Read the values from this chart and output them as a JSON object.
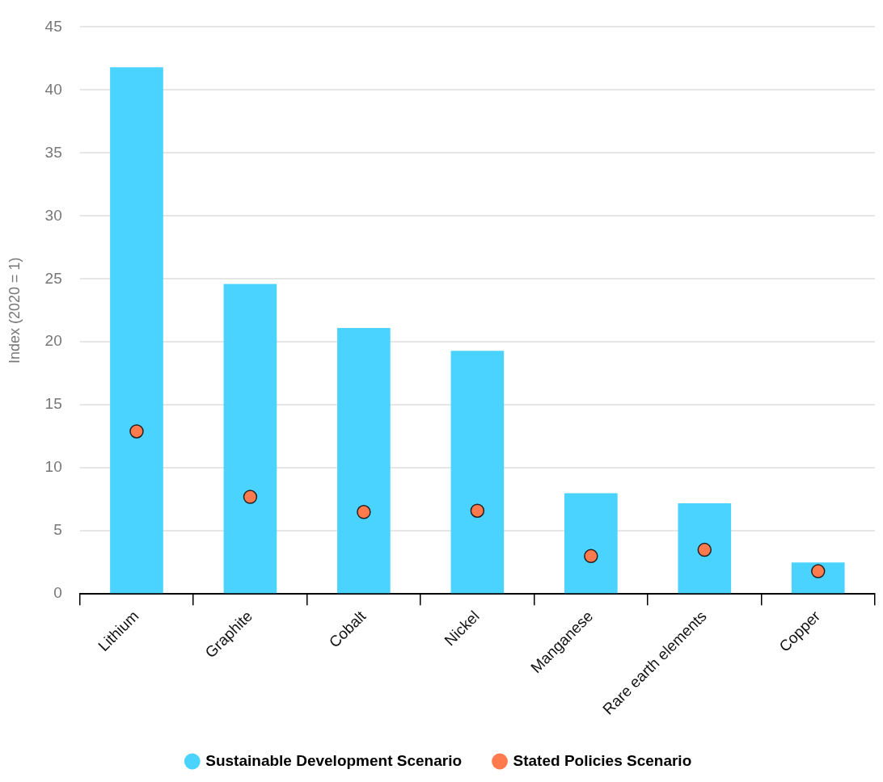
{
  "chart_data": {
    "type": "bar",
    "ylabel": "Index (2020 = 1)",
    "categories": [
      "Lithium",
      "Graphite",
      "Cobalt",
      "Nickel",
      "Manganese",
      "Rare earth elements",
      "Copper"
    ],
    "series": [
      {
        "name": "Sustainable Development Scenario",
        "color": "#4bd3ff",
        "values": [
          41.8,
          24.6,
          21.1,
          19.3,
          8.0,
          7.2,
          2.5
        ]
      },
      {
        "name": "Stated Policies Scenario",
        "type": "scatter",
        "color": "#ff7a4d",
        "x": [
          "Lithium",
          "Graphite",
          "Cobalt",
          "Nickel",
          "Manganese",
          "Rare earth elements",
          "Copper"
        ],
        "values": [
          12.9,
          7.7,
          6.5,
          6.6,
          3.0,
          3.5,
          1.8
        ]
      }
    ],
    "ylim": [
      0,
      45
    ],
    "yticks": [
      0,
      5,
      10,
      15,
      20,
      25,
      30,
      35,
      40,
      45
    ],
    "grid": "y",
    "legend": "bottom",
    "marker": "circle"
  }
}
